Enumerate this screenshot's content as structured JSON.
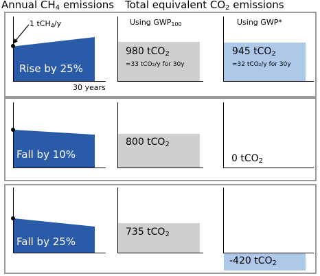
{
  "headers": {
    "annual_prefix": "Annual CH",
    "annual_sub": "4",
    "annual_suffix": " emissions",
    "total_prefix": "Total equivalent CO",
    "total_sub": "2",
    "total_suffix": " emissions"
  },
  "columns": {
    "gwp100_prefix": "Using GWP",
    "gwp100_sub": "100",
    "gwpstar": "Using GWP*"
  },
  "annotations": {
    "initial_prefix": "1 tCH",
    "initial_sub": "4",
    "initial_suffix": "/y",
    "duration": "30 years"
  },
  "colors": {
    "emission_area": "#2a5ba8",
    "gwp100_box": "#cfcfcf",
    "gwpstar_box": "#aec8ea",
    "panel_border": "#9a9a9a"
  },
  "scenarios": [
    {
      "label": "Rise by 25%",
      "change_pct": 25,
      "gwp100": {
        "prefix": "980 tCO",
        "sub": "2",
        "suffix": "",
        "value": 980,
        "note": "=33 tCO₂/y for 30y"
      },
      "gwpstar": {
        "prefix": "945 tCO",
        "sub": "2",
        "suffix": "",
        "value": 945,
        "note": "=32 tCO₂/y for 30y"
      }
    },
    {
      "label": "Fall by 10%",
      "change_pct": -10,
      "gwp100": {
        "prefix": "800 tCO",
        "sub": "2",
        "suffix": "",
        "value": 800
      },
      "gwpstar": {
        "prefix": "0 tCO",
        "sub": "2",
        "suffix": "",
        "value": 0
      }
    },
    {
      "label": "Fall by 25%",
      "change_pct": -25,
      "gwp100": {
        "prefix": "735 tCO",
        "sub": "2",
        "suffix": "",
        "value": 735
      },
      "gwpstar": {
        "prefix": "-420 tCO",
        "sub": "2",
        "suffix": "",
        "value": -420
      }
    }
  ]
}
